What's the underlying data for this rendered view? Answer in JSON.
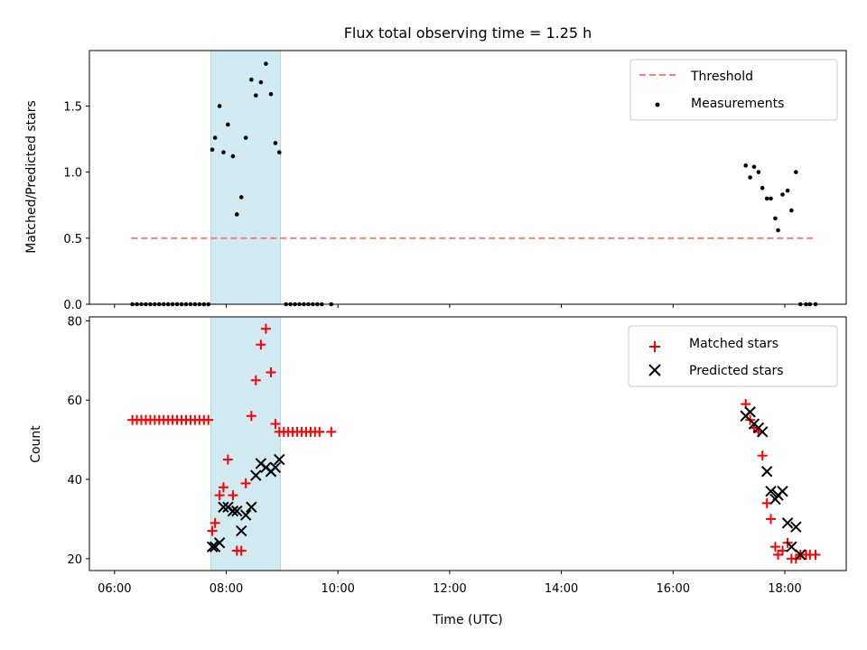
{
  "chart_data": {
    "title": "Flux total observing time = 1.25 h",
    "xlabel": "Time (UTC)",
    "x_ticks": [
      "06:00",
      "08:00",
      "10:00",
      "12:00",
      "14:00",
      "16:00",
      "18:00"
    ],
    "x_tick_hours": [
      6,
      8,
      10,
      12,
      14,
      16,
      18
    ],
    "xlim_hours": [
      5.55,
      19.1
    ],
    "highlight_span_hours": [
      7.72,
      8.97
    ],
    "highlight_color": "#add8e6",
    "panels": [
      {
        "type": "scatter",
        "ylabel": "Matched/Predicted stars",
        "ylim": [
          0,
          1.92
        ],
        "y_ticks": [
          "0.0",
          "0.5",
          "1.0",
          "1.5"
        ],
        "y_tick_values": [
          0,
          0.5,
          1.0,
          1.5
        ],
        "legend_position": "top-right",
        "series": [
          {
            "name": "Threshold",
            "kind": "dashed-line",
            "color": "#ff7f7f",
            "x": [
              6.3,
              18.5
            ],
            "y": [
              0.5,
              0.5
            ]
          },
          {
            "name": "Measurements",
            "kind": "points",
            "color": "#000000",
            "x": [
              6.32,
              6.4,
              6.48,
              6.56,
              6.64,
              6.72,
              6.8,
              6.88,
              6.96,
              7.04,
              7.12,
              7.2,
              7.28,
              7.36,
              7.44,
              7.52,
              7.6,
              7.68,
              7.75,
              7.8,
              7.88,
              7.95,
              8.03,
              8.12,
              8.19,
              8.27,
              8.35,
              8.45,
              8.53,
              8.62,
              8.71,
              8.8,
              8.88,
              8.95,
              9.07,
              9.15,
              9.23,
              9.31,
              9.39,
              9.47,
              9.55,
              9.63,
              9.71,
              9.88,
              17.3,
              17.38,
              17.45,
              17.53,
              17.6,
              17.68,
              17.75,
              17.83,
              17.88,
              17.96,
              18.05,
              18.12,
              18.2,
              18.28,
              18.38,
              18.45,
              18.55
            ],
            "y": [
              0,
              0,
              0,
              0,
              0,
              0,
              0,
              0,
              0,
              0,
              0,
              0,
              0,
              0,
              0,
              0,
              0,
              0,
              1.17,
              1.26,
              1.5,
              1.15,
              1.36,
              1.12,
              0.68,
              0.81,
              1.26,
              1.7,
              1.58,
              1.68,
              1.82,
              1.59,
              1.22,
              1.15,
              0,
              0,
              0,
              0,
              0,
              0,
              0,
              0,
              0,
              0,
              1.05,
              0.96,
              1.04,
              1.0,
              0.88,
              0.8,
              0.8,
              0.65,
              0.56,
              0.83,
              0.86,
              0.71,
              1.0,
              0,
              0,
              0,
              0
            ]
          }
        ]
      },
      {
        "type": "scatter",
        "ylabel": "Count",
        "ylim": [
          17,
          81
        ],
        "y_ticks": [
          "20",
          "40",
          "60",
          "80"
        ],
        "y_tick_values": [
          20,
          40,
          60,
          80
        ],
        "legend_position": "top-right",
        "series": [
          {
            "name": "Matched stars",
            "kind": "plus",
            "color": "#ff0000",
            "x": [
              6.32,
              6.4,
              6.48,
              6.56,
              6.64,
              6.72,
              6.8,
              6.88,
              6.96,
              7.04,
              7.12,
              7.2,
              7.28,
              7.36,
              7.44,
              7.52,
              7.6,
              7.68,
              7.75,
              7.8,
              7.88,
              7.95,
              8.03,
              8.12,
              8.19,
              8.27,
              8.35,
              8.45,
              8.53,
              8.62,
              8.71,
              8.8,
              8.88,
              8.95,
              9.03,
              9.11,
              9.19,
              9.27,
              9.35,
              9.43,
              9.51,
              9.59,
              9.67,
              9.88,
              17.3,
              17.38,
              17.45,
              17.53,
              17.6,
              17.68,
              17.75,
              17.83,
              17.88,
              17.96,
              18.05,
              18.12,
              18.2,
              18.28,
              18.38,
              18.45,
              18.55
            ],
            "y": [
              55,
              55,
              55,
              55,
              55,
              55,
              55,
              55,
              55,
              55,
              55,
              55,
              55,
              55,
              55,
              55,
              55,
              55,
              27,
              29,
              36,
              38,
              45,
              36,
              22,
              22,
              39,
              56,
              65,
              74,
              78,
              67,
              54,
              52,
              52,
              52,
              52,
              52,
              52,
              52,
              52,
              52,
              52,
              52,
              59,
              55,
              53,
              52,
              46,
              34,
              30,
              23,
              21,
              22,
              24,
              20,
              20,
              21,
              21,
              21,
              21
            ]
          },
          {
            "name": "Predicted stars",
            "kind": "x",
            "color": "#000000",
            "x": [
              7.75,
              7.8,
              7.88,
              7.95,
              8.03,
              8.12,
              8.19,
              8.27,
              8.35,
              8.45,
              8.53,
              8.62,
              8.71,
              8.8,
              8.88,
              8.95,
              17.3,
              17.38,
              17.45,
              17.53,
              17.6,
              17.68,
              17.75,
              17.83,
              17.88,
              17.96,
              18.05,
              18.12,
              18.2,
              18.28
            ],
            "y": [
              23,
              23,
              24,
              33,
              33,
              32,
              32,
              27,
              31,
              33,
              41,
              44,
              43,
              42,
              43,
              45,
              56,
              57,
              54,
              53,
              52,
              42,
              37,
              35,
              36,
              37,
              29,
              23,
              28,
              21
            ]
          }
        ]
      }
    ]
  }
}
